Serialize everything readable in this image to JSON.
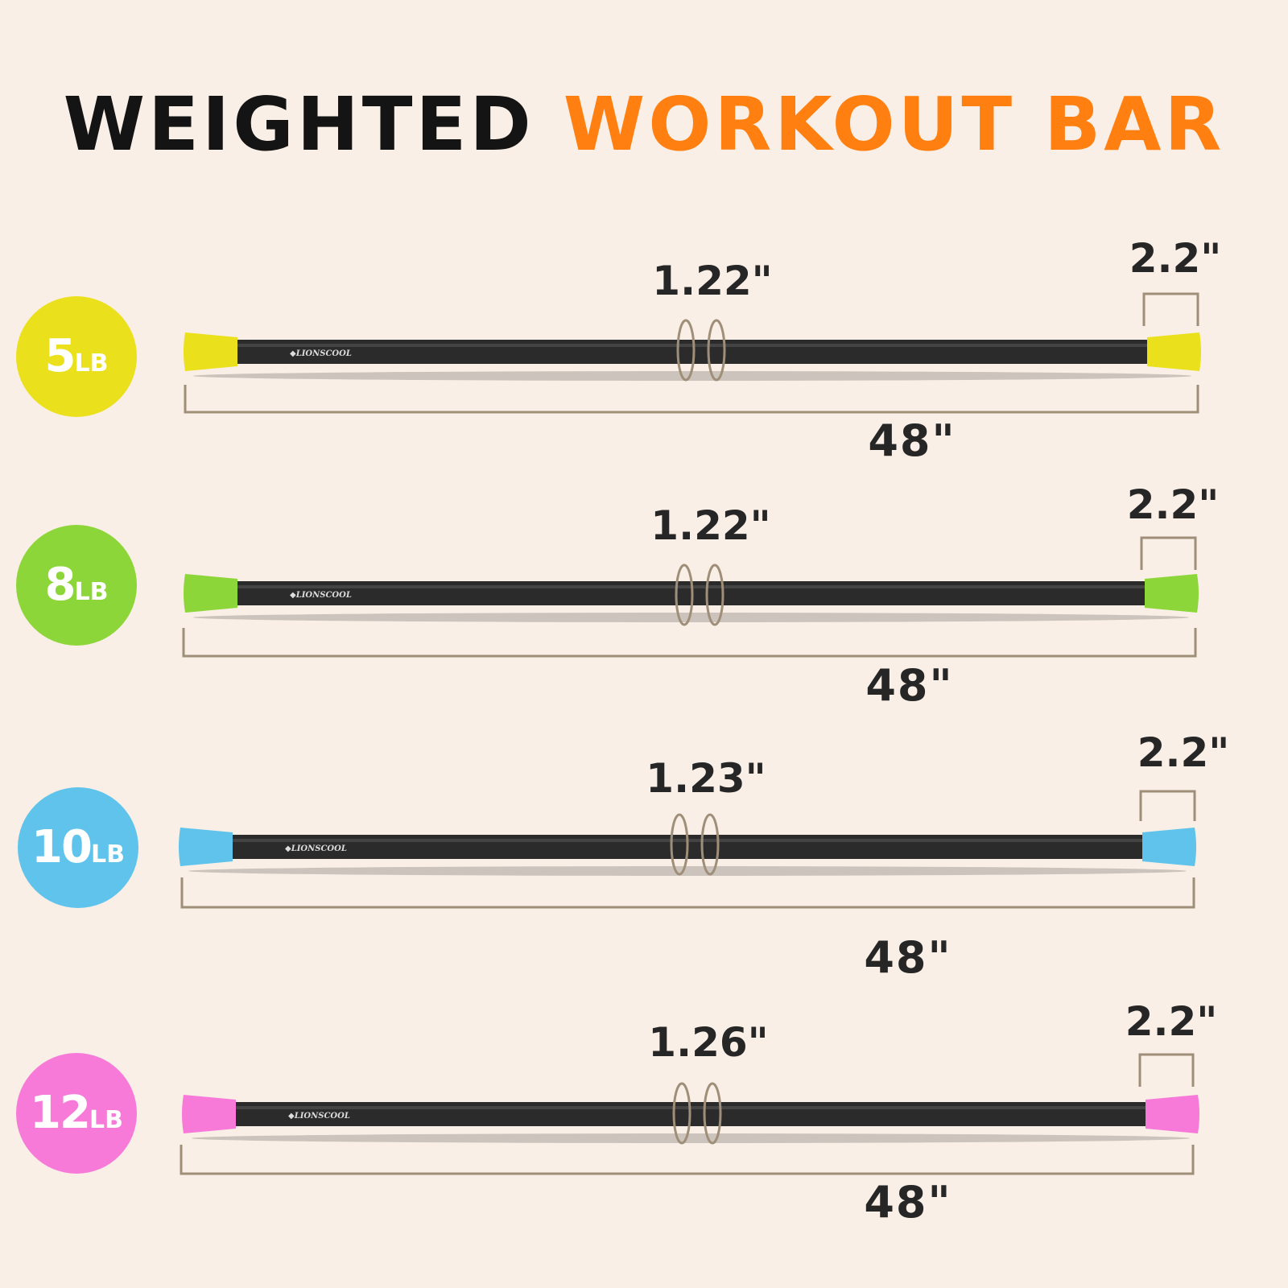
{
  "title": {
    "part1": "WEIGHTED",
    "part2": "WORKOUT BAR"
  },
  "colors": {
    "background": "#f9efe6",
    "title_accent": "#ff7f10",
    "bar": "#2b2b2b",
    "dimension_line": "#a08f78"
  },
  "bars": [
    {
      "weight": "5",
      "unit": "LB",
      "color": "#ebe01c",
      "diameter": "1.22\"",
      "cap_width": "2.2\"",
      "length": "48\"",
      "brand": "LIONSCOOL"
    },
    {
      "weight": "8",
      "unit": "LB",
      "color": "#8dd63a",
      "diameter": "1.22\"",
      "cap_width": "2.2\"",
      "length": "48\"",
      "brand": "LIONSCOOL"
    },
    {
      "weight": "10",
      "unit": "LB",
      "color": "#5fc3ec",
      "diameter": "1.23\"",
      "cap_width": "2.2\"",
      "length": "48\"",
      "brand": "LIONSCOOL"
    },
    {
      "weight": "12",
      "unit": "LB",
      "color": "#f77ad9",
      "diameter": "1.26\"",
      "cap_width": "2.2\"",
      "length": "48\"",
      "brand": "LIONSCOOL"
    }
  ]
}
